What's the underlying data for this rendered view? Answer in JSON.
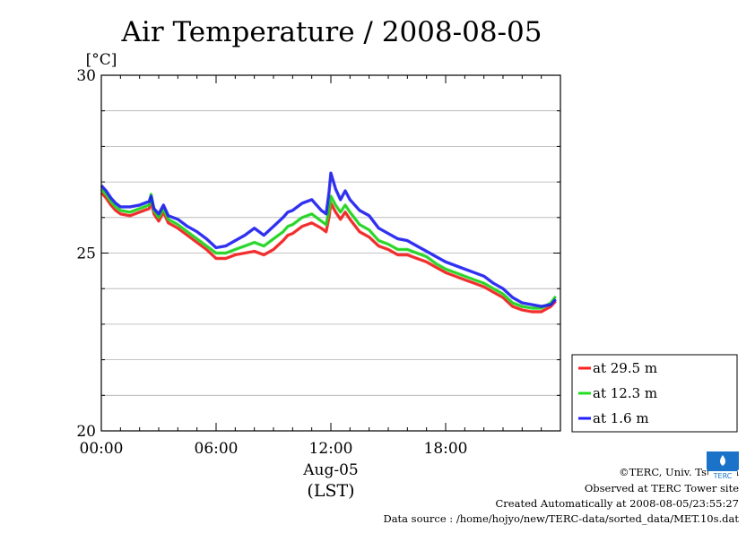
{
  "chart_data": {
    "type": "line",
    "title": "Air Temperature / 2008-08-05",
    "ylabel": "[°C]",
    "xlabel_date": "Aug-05",
    "xlabel_tz": "(LST)",
    "xlim": [
      0,
      24
    ],
    "ylim": [
      20,
      30
    ],
    "yticks": [
      {
        "v": 20,
        "label": "20"
      },
      {
        "v": 25,
        "label": "25"
      },
      {
        "v": 30,
        "label": "30"
      }
    ],
    "ygrid": [
      21,
      22,
      23,
      24,
      26,
      27,
      28,
      29
    ],
    "xticks": [
      {
        "v": 0,
        "label": "00:00"
      },
      {
        "v": 6,
        "label": "06:00"
      },
      {
        "v": 12,
        "label": "12:00"
      },
      {
        "v": 18,
        "label": "18:00"
      }
    ],
    "grid": true,
    "legend_position": "right-bottom-outside",
    "series": [
      {
        "name": "at 29.5 m",
        "color": "#ff2020",
        "x": [
          0,
          0.25,
          0.5,
          0.75,
          1,
          1.5,
          2,
          2.5,
          2.6,
          2.75,
          3,
          3.25,
          3.5,
          4,
          4.5,
          5,
          5.5,
          6,
          6.5,
          7,
          7.5,
          8,
          8.5,
          9,
          9.5,
          9.75,
          10,
          10.5,
          11,
          11.5,
          11.75,
          11.9,
          12,
          12.25,
          12.5,
          12.75,
          13,
          13.5,
          14,
          14.5,
          15,
          15.5,
          16,
          16.5,
          17,
          17.5,
          18,
          18.5,
          19,
          19.5,
          20,
          20.5,
          21,
          21.5,
          22,
          22.5,
          23,
          23.5,
          23.75
        ],
        "y": [
          26.7,
          26.55,
          26.35,
          26.2,
          26.1,
          26.05,
          26.15,
          26.25,
          26.45,
          26.1,
          25.9,
          26.15,
          25.85,
          25.7,
          25.5,
          25.3,
          25.1,
          24.85,
          24.85,
          24.95,
          25.0,
          25.05,
          24.95,
          25.1,
          25.35,
          25.5,
          25.55,
          25.75,
          25.85,
          25.7,
          25.6,
          26.0,
          26.4,
          26.15,
          25.95,
          26.15,
          25.95,
          25.6,
          25.45,
          25.2,
          25.1,
          24.95,
          24.95,
          24.85,
          24.75,
          24.6,
          24.45,
          24.35,
          24.25,
          24.15,
          24.05,
          23.9,
          23.75,
          23.5,
          23.4,
          23.35,
          23.35,
          23.5,
          23.65
        ]
      },
      {
        "name": "at 12.3 m",
        "color": "#20e020",
        "x": [
          0,
          0.25,
          0.5,
          0.75,
          1,
          1.5,
          2,
          2.5,
          2.6,
          2.75,
          3,
          3.25,
          3.5,
          4,
          4.5,
          5,
          5.5,
          6,
          6.5,
          7,
          7.5,
          8,
          8.5,
          9,
          9.5,
          9.75,
          10,
          10.5,
          11,
          11.5,
          11.75,
          11.9,
          12,
          12.25,
          12.5,
          12.75,
          13,
          13.5,
          14,
          14.5,
          15,
          15.5,
          16,
          16.5,
          17,
          17.5,
          18,
          18.5,
          19,
          19.5,
          20,
          20.5,
          21,
          21.5,
          22,
          22.5,
          23,
          23.5,
          23.75
        ],
        "y": [
          26.8,
          26.65,
          26.45,
          26.3,
          26.2,
          26.15,
          26.25,
          26.35,
          26.65,
          26.2,
          26.0,
          26.25,
          25.95,
          25.8,
          25.6,
          25.4,
          25.2,
          25.0,
          25.0,
          25.1,
          25.2,
          25.3,
          25.2,
          25.4,
          25.6,
          25.75,
          25.8,
          26.0,
          26.1,
          25.9,
          25.8,
          26.2,
          26.6,
          26.35,
          26.15,
          26.35,
          26.15,
          25.8,
          25.65,
          25.35,
          25.25,
          25.1,
          25.1,
          25.0,
          24.9,
          24.7,
          24.55,
          24.45,
          24.35,
          24.25,
          24.15,
          24.0,
          23.85,
          23.6,
          23.5,
          23.45,
          23.45,
          23.6,
          23.78
        ]
      },
      {
        "name": "at 1.6 m",
        "color": "#2020ff",
        "x": [
          0,
          0.25,
          0.5,
          0.75,
          1,
          1.5,
          2,
          2.5,
          2.6,
          2.75,
          3,
          3.25,
          3.5,
          4,
          4.5,
          5,
          5.5,
          6,
          6.5,
          7,
          7.5,
          8,
          8.5,
          9,
          9.5,
          9.75,
          10,
          10.5,
          11,
          11.5,
          11.75,
          11.9,
          12,
          12.25,
          12.5,
          12.75,
          13,
          13.5,
          14,
          14.5,
          15,
          15.5,
          16,
          16.5,
          17,
          17.5,
          18,
          18.5,
          19,
          19.5,
          20,
          20.5,
          21,
          21.5,
          22,
          22.5,
          23,
          23.5,
          23.75
        ],
        "y": [
          26.9,
          26.75,
          26.55,
          26.4,
          26.3,
          26.3,
          26.35,
          26.45,
          26.6,
          26.25,
          26.1,
          26.35,
          26.05,
          25.95,
          25.75,
          25.6,
          25.4,
          25.15,
          25.2,
          25.35,
          25.5,
          25.7,
          25.5,
          25.75,
          26.0,
          26.15,
          26.2,
          26.4,
          26.5,
          26.2,
          26.1,
          26.7,
          27.25,
          26.8,
          26.5,
          26.75,
          26.5,
          26.2,
          26.05,
          25.7,
          25.55,
          25.4,
          25.35,
          25.2,
          25.05,
          24.9,
          24.75,
          24.65,
          24.55,
          24.45,
          24.35,
          24.15,
          24.0,
          23.75,
          23.6,
          23.55,
          23.5,
          23.55,
          23.7
        ]
      }
    ]
  },
  "credits": {
    "copyright": "©TERC, Univ. Tsukuba",
    "site": "Observed at TERC Tower site",
    "created": "Created Automatically at 2008-08-05/23:55:27",
    "source": "Data source : /home/hojyo/new/TERC-data/sorted_data/MET.10s.dat"
  },
  "logo": {
    "icon": "terc-logo",
    "text": "TERC",
    "color": "#1a73c9"
  }
}
